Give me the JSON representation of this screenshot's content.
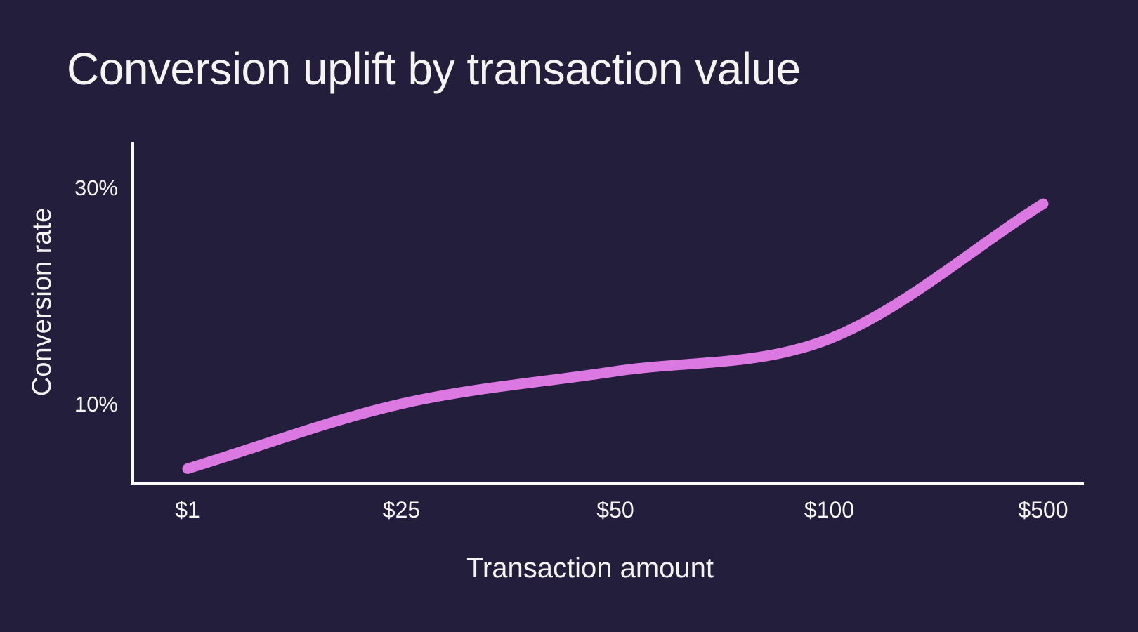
{
  "title": "Conversion uplift by transaction value",
  "colors": {
    "background": "#241E3D",
    "line": "#DC78E2",
    "axis": "#FCFBFA",
    "text": "#F6F4F1"
  },
  "chart_data": {
    "type": "line",
    "title": "Conversion uplift by transaction value",
    "xlabel": "Transaction amount",
    "ylabel": "Conversion rate",
    "categories": [
      "$1",
      "$25",
      "$50",
      "$100",
      "$500"
    ],
    "values": [
      4,
      10,
      13,
      16,
      28.5
    ],
    "value_unit": "%",
    "y_ticks": [
      {
        "value": 30,
        "label": "30%"
      },
      {
        "value": 10,
        "label": "10%"
      }
    ],
    "ylim": [
      2.5,
      34.5
    ],
    "x_scale": "categorical-even-spacing",
    "grid": false,
    "legend": "none"
  }
}
